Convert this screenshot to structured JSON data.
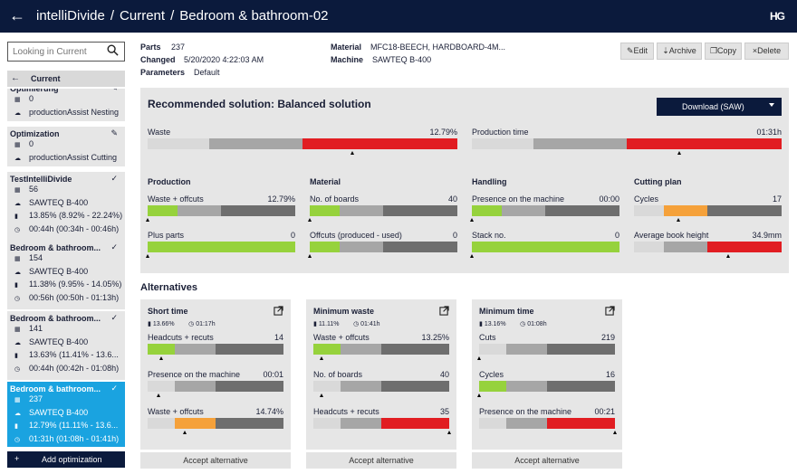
{
  "header": {
    "back_icon": "arrow-left-icon",
    "crumbs": [
      "intelliDivide",
      "Current",
      "Bedroom & bathroom-02"
    ],
    "logo": "HG"
  },
  "sidebar": {
    "search_placeholder": "Looking in Current",
    "current_label": "Current",
    "cards": [
      {
        "title": "Optimierung",
        "icon": "pencil",
        "rows": [
          {
            "icon": "grid",
            "text": "0"
          },
          {
            "icon": "cloud",
            "text": "productionAssist Nesting"
          }
        ]
      },
      {
        "title": "Optimization",
        "icon": "pencil",
        "rows": [
          {
            "icon": "grid",
            "text": "0"
          },
          {
            "icon": "cloud",
            "text": "productionAssist Cutting"
          }
        ]
      },
      {
        "title": "TestIntelliDivide",
        "icon": "check",
        "rows": [
          {
            "icon": "grid",
            "text": "56"
          },
          {
            "icon": "cloud",
            "text": "SAWTEQ B-400"
          },
          {
            "icon": "trash",
            "text": "13.85% (8.92% - 22.24%)"
          },
          {
            "icon": "clock",
            "text": "00:44h (00:34h - 00:46h)"
          }
        ]
      },
      {
        "title": "Bedroom & bathroom...",
        "icon": "check",
        "rows": [
          {
            "icon": "grid",
            "text": "154"
          },
          {
            "icon": "cloud",
            "text": "SAWTEQ B-400"
          },
          {
            "icon": "trash",
            "text": "11.38% (9.95% - 14.05%)"
          },
          {
            "icon": "clock",
            "text": "00:56h (00:50h - 01:13h)"
          }
        ]
      },
      {
        "title": "Bedroom & bathroom...",
        "icon": "check",
        "rows": [
          {
            "icon": "grid",
            "text": "141"
          },
          {
            "icon": "cloud",
            "text": "SAWTEQ B-400"
          },
          {
            "icon": "trash",
            "text": "13.63% (11.41% - 13.6..."
          },
          {
            "icon": "clock",
            "text": "00:44h (00:42h - 01:08h)"
          }
        ]
      },
      {
        "title": "Bedroom & bathroom...",
        "icon": "check",
        "active": true,
        "rows": [
          {
            "icon": "grid",
            "text": "237"
          },
          {
            "icon": "cloud",
            "text": "SAWTEQ B-400"
          },
          {
            "icon": "trash",
            "text": "12.79% (11.11% - 13.6..."
          },
          {
            "icon": "clock",
            "text": "01:31h (01:08h - 01:41h)"
          }
        ]
      }
    ],
    "add_label": "Add optimization"
  },
  "info": {
    "parts_label": "Parts",
    "parts": "237",
    "changed_label": "Changed",
    "changed": "5/20/2020 4:22:03 AM",
    "params_label": "Parameters",
    "params": "Default",
    "material_label": "Material",
    "material": "MFC18-BEECH, HARDBOARD-4M...",
    "machine_label": "Machine",
    "machine": "SAWTEQ B-400"
  },
  "actions": {
    "edit": "Edit",
    "archive": "Archive",
    "copy": "Copy",
    "delete": "Delete"
  },
  "recommended": {
    "title": "Recommended solution: Balanced solution",
    "download": "Download (SAW)",
    "waste": {
      "label": "Waste",
      "value": "12.79%"
    },
    "time": {
      "label": "Production time",
      "value": "01:31h"
    },
    "sections": [
      {
        "title": "Production",
        "metrics": [
          {
            "label": "Waste + offcuts",
            "value": "12.79%"
          },
          {
            "label": "Plus parts",
            "value": "0"
          }
        ]
      },
      {
        "title": "Material",
        "metrics": [
          {
            "label": "No. of boards",
            "value": "40"
          },
          {
            "label": "Offcuts (produced - used)",
            "value": "0"
          }
        ]
      },
      {
        "title": "Handling",
        "metrics": [
          {
            "label": "Presence on the machine",
            "value": "00:00"
          },
          {
            "label": "Stack no.",
            "value": "0"
          }
        ]
      },
      {
        "title": "Cutting plan",
        "metrics": [
          {
            "label": "Cycles",
            "value": "17"
          },
          {
            "label": "Average book height",
            "value": "34.9mm"
          }
        ]
      }
    ]
  },
  "alternatives": {
    "heading": "Alternatives",
    "accept_label": "Accept alternative",
    "items": [
      {
        "title": "Short time",
        "waste": "13.66%",
        "time": "01:17h",
        "metrics": [
          {
            "label": "Headcuts + recuts",
            "value": "14"
          },
          {
            "label": "Presence on the machine",
            "value": "00:01"
          },
          {
            "label": "Waste + offcuts",
            "value": "14.74%"
          }
        ]
      },
      {
        "title": "Minimum waste",
        "waste": "11.11%",
        "time": "01:41h",
        "metrics": [
          {
            "label": "Waste + offcuts",
            "value": "13.25%"
          },
          {
            "label": "No. of boards",
            "value": "40"
          },
          {
            "label": "Headcuts + recuts",
            "value": "35"
          }
        ]
      },
      {
        "title": "Minimum time",
        "waste": "13.16%",
        "time": "01:08h",
        "metrics": [
          {
            "label": "Cuts",
            "value": "219"
          },
          {
            "label": "Cycles",
            "value": "16"
          },
          {
            "label": "Presence on the machine",
            "value": "00:21"
          }
        ]
      }
    ]
  },
  "colors": {
    "navy": "#0b1a3c",
    "green": "#96d23c",
    "orange": "#f5a13a",
    "red": "#e11d22",
    "light": "#d9d9d9",
    "mid": "#a6a6a6",
    "dark": "#6e6e6e",
    "accent": "#1aa3e0"
  }
}
